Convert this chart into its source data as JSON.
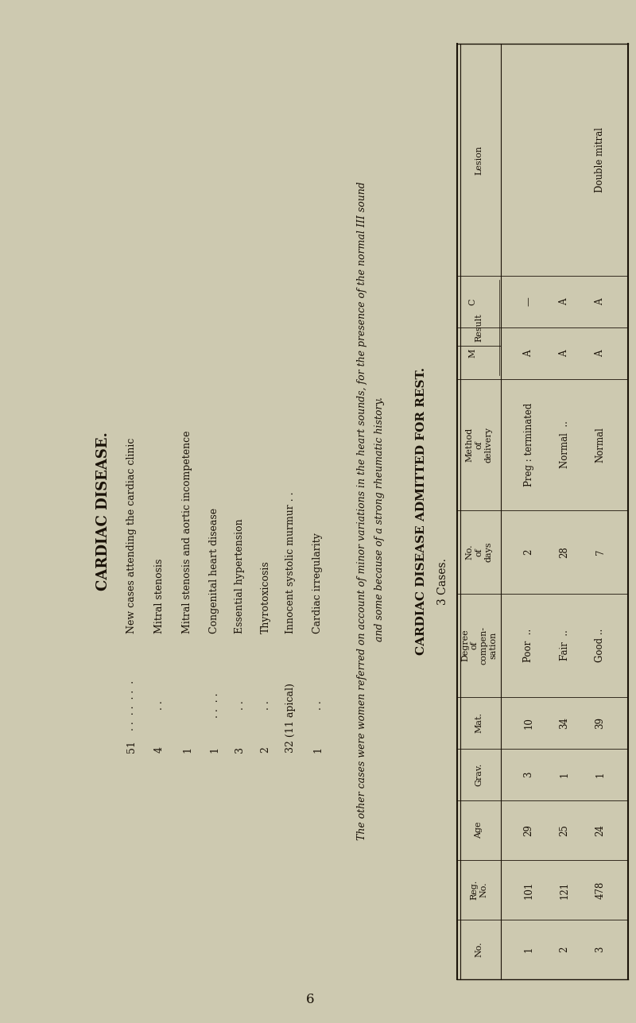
{
  "bg_color": "#cdc9b0",
  "title": "CARDIAC DISEASE.",
  "page_number": "6",
  "list_items": [
    {
      "label": "New cases attending the cardiac clinic",
      "dots": " . .",
      "value": "51"
    },
    {
      "label": "Mitral stenosis",
      "dots": " . .",
      "value": "4"
    },
    {
      "label": "Mitral stenosis and aortic incompetence",
      "dots": "",
      "value": "1"
    },
    {
      "label": "Congenital heart disease",
      "dots": " . .",
      "value": "1"
    },
    {
      "label": "Essential hypertension",
      "dots": " . .",
      "value": "3"
    },
    {
      "label": "Thyrotoxicosis",
      "dots": " . .",
      "value": "2"
    },
    {
      "label": "Innocent systolic murmur . .",
      "dots": "",
      "value": "32 (11 apical)"
    },
    {
      "label": "Cardiac irregularity",
      "dots": " . .",
      "value": "1"
    }
  ],
  "note_line1": "The other cases were women referred on account of minor variations in the heart sounds, for the presence of the normal III sound",
  "note_line2": "and some because of a strong rheumatic history.",
  "table2_title": "CARDIAC DISEASE ADMITTED FOR REST.",
  "table2_subtitle": "3 Cases.",
  "col_headers": [
    "No.",
    "Reg.\nNo.",
    "Age",
    "Grav.",
    "Mat.",
    "Degree\nof\ncompensation",
    "No.\nof\ndays",
    "Method\nof\ndelivery",
    "M",
    "C",
    "Lesion"
  ],
  "rows": [
    [
      "1",
      "101",
      "29",
      "3",
      "10",
      "Poor  ..",
      "2",
      "Preg : terminated",
      "A",
      "—",
      ""
    ],
    [
      "2",
      "121",
      "25",
      "1",
      "34",
      "Fair  ..",
      "28",
      "Normal  ..",
      "A",
      "A",
      ""
    ],
    [
      "3",
      "478",
      "24",
      "1",
      "39",
      "Good ..",
      "7",
      "Normal",
      "A",
      "A",
      "Double mitral"
    ]
  ],
  "font_color": "#1a1208"
}
